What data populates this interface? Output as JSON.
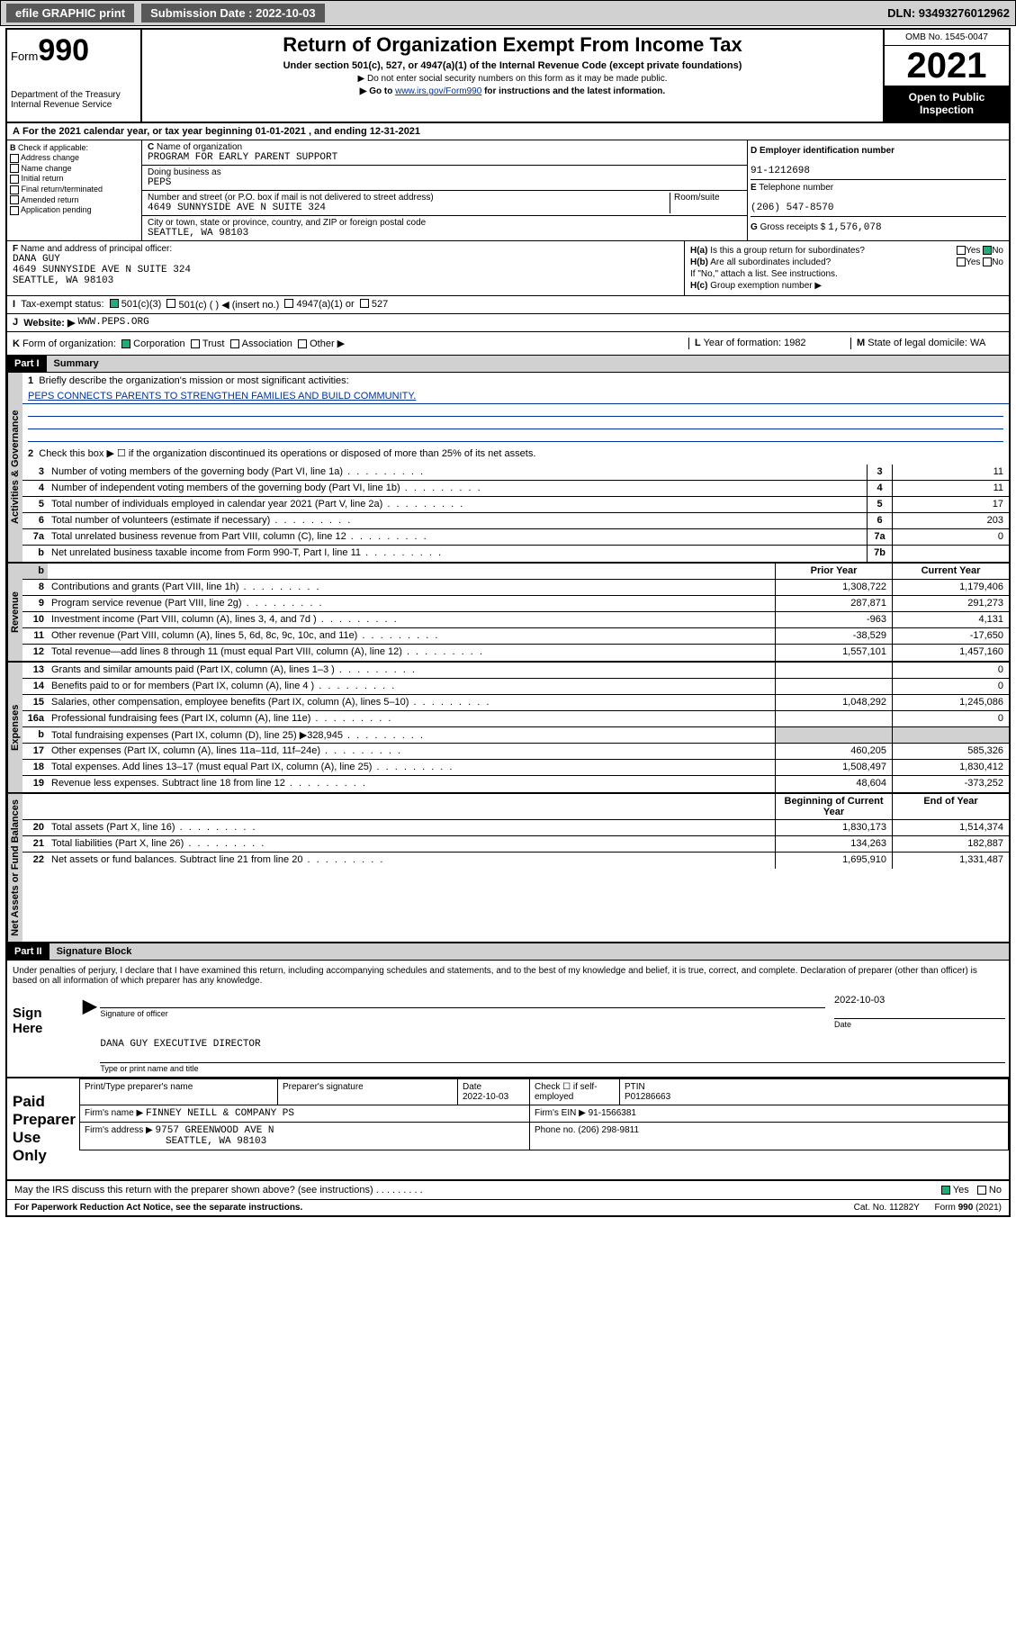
{
  "topbar": {
    "efile": "efile GRAPHIC print",
    "subdate_lbl": "Submission Date : 2022-10-03",
    "dln": "DLN: 93493276012962"
  },
  "header": {
    "form_prefix": "Form",
    "form_num": "990",
    "dept": "Department of the Treasury",
    "irs": "Internal Revenue Service",
    "title": "Return of Organization Exempt From Income Tax",
    "sub": "Under section 501(c), 527, or 4947(a)(1) of the Internal Revenue Code (except private foundations)",
    "note1": "▶ Do not enter social security numbers on this form as it may be made public.",
    "note2_pre": "▶ Go to ",
    "note2_link": "www.irs.gov/Form990",
    "note2_post": " for instructions and the latest information.",
    "omb": "OMB No. 1545-0047",
    "year": "2021",
    "open": "Open to Public Inspection"
  },
  "A": {
    "text": "For the 2021 calendar year, or tax year beginning 01-01-2021  , and ending 12-31-2021"
  },
  "B": {
    "label": "Check if applicable:",
    "opts": [
      "Address change",
      "Name change",
      "Initial return",
      "Final return/terminated",
      "Amended return",
      "Application pending"
    ]
  },
  "C": {
    "name_lbl": "Name of organization",
    "name": "PROGRAM FOR EARLY PARENT SUPPORT",
    "dba_lbl": "Doing business as",
    "dba": "PEPS",
    "addr_lbl": "Number and street (or P.O. box if mail is not delivered to street address)",
    "room_lbl": "Room/suite",
    "addr": "4649 SUNNYSIDE AVE N SUITE 324",
    "city_lbl": "City or town, state or province, country, and ZIP or foreign postal code",
    "city": "SEATTLE, WA  98103"
  },
  "D": {
    "lbl": "Employer identification number",
    "val": "91-1212698"
  },
  "E": {
    "lbl": "Telephone number",
    "val": "(206) 547-8570"
  },
  "G": {
    "lbl": "Gross receipts $",
    "val": "1,576,078"
  },
  "F": {
    "lbl": "Name and address of principal officer:",
    "name": "DANA GUY",
    "addr1": "4649 SUNNYSIDE AVE N SUITE 324",
    "addr2": "SEATTLE, WA  98103"
  },
  "H": {
    "a": "Is this a group return for subordinates?",
    "b": "Are all subordinates included?",
    "bnote": "If \"No,\" attach a list. See instructions.",
    "c": "Group exemption number ▶"
  },
  "I": {
    "lbl": "Tax-exempt status:",
    "opts": [
      "501(c)(3)",
      "501(c) (  ) ◀ (insert no.)",
      "4947(a)(1) or",
      "527"
    ]
  },
  "J": {
    "lbl": "Website: ▶",
    "val": "WWW.PEPS.ORG"
  },
  "K": {
    "lbl": "Form of organization:",
    "opts": [
      "Corporation",
      "Trust",
      "Association",
      "Other ▶"
    ]
  },
  "L": {
    "lbl": "Year of formation:",
    "val": "1982"
  },
  "M": {
    "lbl": "State of legal domicile:",
    "val": "WA"
  },
  "part1": {
    "hdr": "Part I",
    "title": "Summary",
    "l1_lbl": "Briefly describe the organization's mission or most significant activities:",
    "l1_val": "PEPS CONNECTS PARENTS TO STRENGTHEN FAMILIES AND BUILD COMMUNITY.",
    "l2": "Check this box ▶ ☐  if the organization discontinued its operations or disposed of more than 25% of its net assets.",
    "tabs": {
      "gov": "Activities & Governance",
      "rev": "Revenue",
      "exp": "Expenses",
      "net": "Net Assets or Fund Balances"
    },
    "lines_gov": [
      {
        "n": "3",
        "t": "Number of voting members of the governing body (Part VI, line 1a)",
        "box": "3",
        "v": "11"
      },
      {
        "n": "4",
        "t": "Number of independent voting members of the governing body (Part VI, line 1b)",
        "box": "4",
        "v": "11"
      },
      {
        "n": "5",
        "t": "Total number of individuals employed in calendar year 2021 (Part V, line 2a)",
        "box": "5",
        "v": "17"
      },
      {
        "n": "6",
        "t": "Total number of volunteers (estimate if necessary)",
        "box": "6",
        "v": "203"
      },
      {
        "n": "7a",
        "t": "Total unrelated business revenue from Part VIII, column (C), line 12",
        "box": "7a",
        "v": "0"
      },
      {
        "n": "b",
        "t": "Net unrelated business taxable income from Form 990-T, Part I, line 11",
        "box": "7b",
        "v": ""
      }
    ],
    "col_prior": "Prior Year",
    "col_curr": "Current Year",
    "lines_rev": [
      {
        "n": "8",
        "t": "Contributions and grants (Part VIII, line 1h)",
        "p": "1,308,722",
        "c": "1,179,406"
      },
      {
        "n": "9",
        "t": "Program service revenue (Part VIII, line 2g)",
        "p": "287,871",
        "c": "291,273"
      },
      {
        "n": "10",
        "t": "Investment income (Part VIII, column (A), lines 3, 4, and 7d )",
        "p": "-963",
        "c": "4,131"
      },
      {
        "n": "11",
        "t": "Other revenue (Part VIII, column (A), lines 5, 6d, 8c, 9c, 10c, and 11e)",
        "p": "-38,529",
        "c": "-17,650"
      },
      {
        "n": "12",
        "t": "Total revenue—add lines 8 through 11 (must equal Part VIII, column (A), line 12)",
        "p": "1,557,101",
        "c": "1,457,160"
      }
    ],
    "lines_exp": [
      {
        "n": "13",
        "t": "Grants and similar amounts paid (Part IX, column (A), lines 1–3 )",
        "p": "",
        "c": "0"
      },
      {
        "n": "14",
        "t": "Benefits paid to or for members (Part IX, column (A), line 4 )",
        "p": "",
        "c": "0"
      },
      {
        "n": "15",
        "t": "Salaries, other compensation, employee benefits (Part IX, column (A), lines 5–10)",
        "p": "1,048,292",
        "c": "1,245,086"
      },
      {
        "n": "16a",
        "t": "Professional fundraising fees (Part IX, column (A), line 11e)",
        "p": "",
        "c": "0"
      },
      {
        "n": "b",
        "t": "Total fundraising expenses (Part IX, column (D), line 25) ▶328,945",
        "p": "GRAY",
        "c": "GRAY"
      },
      {
        "n": "17",
        "t": "Other expenses (Part IX, column (A), lines 11a–11d, 11f–24e)",
        "p": "460,205",
        "c": "585,326"
      },
      {
        "n": "18",
        "t": "Total expenses. Add lines 13–17 (must equal Part IX, column (A), line 25)",
        "p": "1,508,497",
        "c": "1,830,412"
      },
      {
        "n": "19",
        "t": "Revenue less expenses. Subtract line 18 from line 12",
        "p": "48,604",
        "c": "-373,252"
      }
    ],
    "col_beg": "Beginning of Current Year",
    "col_end": "End of Year",
    "lines_net": [
      {
        "n": "20",
        "t": "Total assets (Part X, line 16)",
        "p": "1,830,173",
        "c": "1,514,374"
      },
      {
        "n": "21",
        "t": "Total liabilities (Part X, line 26)",
        "p": "134,263",
        "c": "182,887"
      },
      {
        "n": "22",
        "t": "Net assets or fund balances. Subtract line 21 from line 20",
        "p": "1,695,910",
        "c": "1,331,487"
      }
    ]
  },
  "part2": {
    "hdr": "Part II",
    "title": "Signature Block",
    "decl": "Under penalties of perjury, I declare that I have examined this return, including accompanying schedules and statements, and to the best of my knowledge and belief, it is true, correct, and complete. Declaration of preparer (other than officer) is based on all information of which preparer has any knowledge.",
    "sign_here": "Sign Here",
    "sig_off": "Signature of officer",
    "date": "Date",
    "date_val": "2022-10-03",
    "officer": "DANA GUY EXECUTIVE DIRECTOR",
    "type_name": "Type or print name and title",
    "paid": "Paid Preparer Use Only",
    "prep_name_lbl": "Print/Type preparer's name",
    "prep_sig_lbl": "Preparer's signature",
    "prep_date": "2022-10-03",
    "check_self": "Check ☐ if self-employed",
    "ptin_lbl": "PTIN",
    "ptin": "P01286663",
    "firm_name_lbl": "Firm's name      ▶",
    "firm_name": "FINNEY NEILL & COMPANY PS",
    "firm_ein_lbl": "Firm's EIN ▶",
    "firm_ein": "91-1566381",
    "firm_addr_lbl": "Firm's address ▶",
    "firm_addr": "9757 GREENWOOD AVE N",
    "firm_city": "SEATTLE, WA  98103",
    "phone_lbl": "Phone no.",
    "phone": "(206) 298-9811",
    "may_irs": "May the IRS discuss this return with the preparer shown above? (see instructions)"
  },
  "footer": {
    "pra": "For Paperwork Reduction Act Notice, see the separate instructions.",
    "cat": "Cat. No. 11282Y",
    "form": "Form 990 (2021)"
  },
  "colors": {
    "link": "#003399",
    "gray": "#d1d1d1",
    "check_green": "#22aa77"
  }
}
